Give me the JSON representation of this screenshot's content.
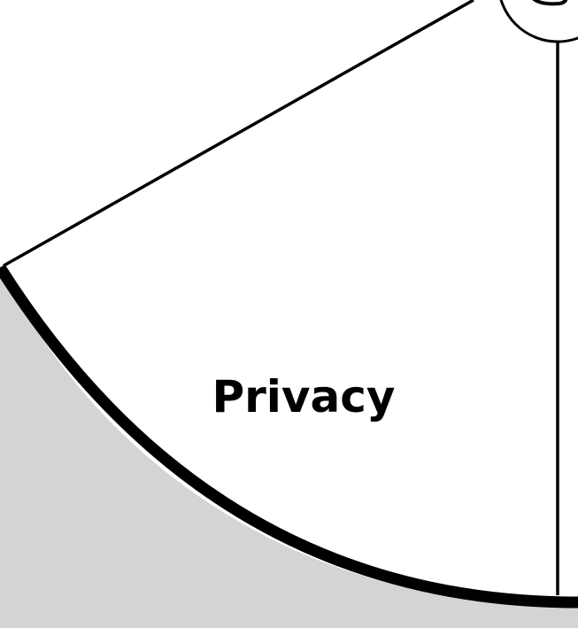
{
  "diagram": {
    "segment": {
      "label": "Privacy"
    },
    "colors": {
      "background": "#d4d4d4",
      "segment_fill": "#ffffff",
      "stroke": "#000000"
    }
  }
}
